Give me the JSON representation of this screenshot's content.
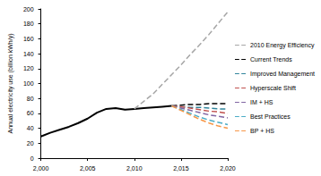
{
  "chart_data": {
    "type": "line",
    "y_label": "Annual electricity use (billion kWh/y)",
    "x": [
      2000,
      2001,
      2002,
      2003,
      2004,
      2005,
      2006,
      2007,
      2008,
      2009,
      2010,
      2011,
      2012,
      2013,
      2014,
      2015,
      2016,
      2017,
      2018,
      2019,
      2020
    ],
    "series": [
      {
        "color": "#000000",
        "line_style": "solid",
        "values": [
          29,
          34,
          38,
          42,
          47,
          53,
          61,
          66,
          67,
          65,
          66,
          67,
          68,
          69,
          70,
          null,
          null,
          null,
          null,
          null,
          null
        ]
      },
      {
        "name": "2010 Energy Efficiency",
        "color": "#a6a6a6",
        "line_style": "dashed",
        "values": [
          null,
          null,
          null,
          null,
          null,
          null,
          null,
          null,
          null,
          null,
          66,
          76,
          86,
          99,
          112,
          125,
          139,
          152,
          166,
          181,
          196
        ]
      },
      {
        "name": "Current Trends",
        "color": "#000000",
        "line_style": "dashed",
        "values": [
          null,
          null,
          null,
          null,
          null,
          null,
          null,
          null,
          null,
          null,
          null,
          null,
          null,
          null,
          70,
          71,
          72,
          72,
          73,
          73,
          73
        ]
      },
      {
        "name": "Improved Management",
        "color": "#31859c",
        "line_style": "dashed",
        "values": [
          null,
          null,
          null,
          null,
          null,
          null,
          null,
          null,
          null,
          null,
          null,
          null,
          null,
          null,
          70,
          69,
          68,
          68,
          67,
          66,
          66
        ]
      },
      {
        "name": "Hyperscale Shift",
        "color": "#c0504d",
        "line_style": "dashed",
        "values": [
          null,
          null,
          null,
          null,
          null,
          null,
          null,
          null,
          null,
          null,
          null,
          null,
          null,
          null,
          70,
          69,
          67,
          65,
          63,
          62,
          60
        ]
      },
      {
        "name": "IM + HS",
        "color": "#8064a2",
        "line_style": "dashed",
        "values": [
          null,
          null,
          null,
          null,
          null,
          null,
          null,
          null,
          null,
          null,
          null,
          null,
          null,
          null,
          70,
          67,
          64,
          61,
          58,
          56,
          54
        ]
      },
      {
        "name": "Best Practices",
        "color": "#4bacc6",
        "line_style": "dashed",
        "values": [
          null,
          null,
          null,
          null,
          null,
          null,
          null,
          null,
          null,
          null,
          null,
          null,
          null,
          null,
          70,
          65,
          60,
          55,
          51,
          48,
          45
        ]
      },
      {
        "name": "BP + HS",
        "color": "#f79646",
        "line_style": "dashed",
        "values": [
          null,
          null,
          null,
          null,
          null,
          null,
          null,
          null,
          null,
          null,
          null,
          null,
          null,
          null,
          70,
          64,
          58,
          52,
          47,
          43,
          40
        ]
      }
    ],
    "xlim": [
      2000,
      2020
    ],
    "xticks": [
      2000,
      2005,
      2010,
      2015,
      2020
    ],
    "ylim": [
      0,
      200
    ],
    "yticks": [
      0,
      20,
      40,
      60,
      80,
      100,
      120,
      140,
      160,
      180,
      200
    ],
    "grid": false,
    "legend": "right"
  }
}
